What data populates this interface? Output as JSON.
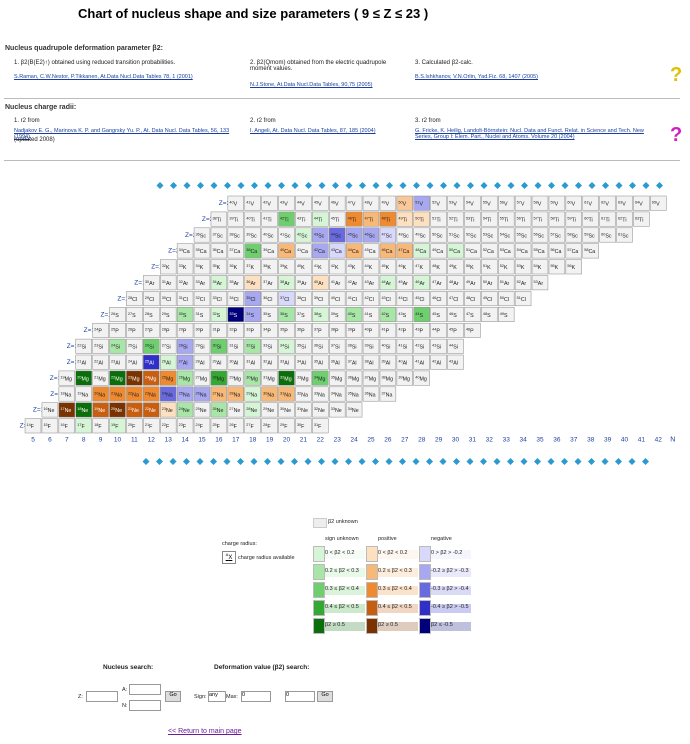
{
  "header": {
    "title": "Chart of nucleus shape and size parameters ( 9 ≤ Z ≤ 23 )"
  },
  "quadrupole": {
    "heading": "Nucleus quadrupole deformation parameter β2:",
    "items": [
      {
        "title": "1. β2(B(E2)↑) obtained using reduced transition probabilities.",
        "ref": "S.Raman, C.W.Nestor, P.Tikkanen, At.Data Nucl.Data Tables 78, 1 (2001)"
      },
      {
        "title": "2. β2(Qmom) obtained from the electric quadrupole moment values.",
        "ref": "N.J.Stone, At.Data Nucl.Data Tables, 90,75 (2005)"
      },
      {
        "title": "3. Calculated β2-calc.",
        "ref": "B.S.Ishkhanov, V.N.Orlin, Yad.Fiz. 68, 1407 (2005)"
      }
    ]
  },
  "radii": {
    "heading": "Nucleus charge radii:",
    "items": [
      {
        "title": "1. r2 from",
        "ref": "Nadjakov E. G., Marinova K. P. and Gangrsky Yu. P., At. Data Nucl. Data Tables, 56, 133 (1994)",
        "extra": "(updated 2008)"
      },
      {
        "title": "2. r2 from",
        "ref": "I. Angeli, At. Data Nucl. Data Tables, 87, 185 (2004)"
      },
      {
        "title": "3. r2 from",
        "ref": "G. Fricke, K. Heilig, Landolt-Börnstein: Nucl. Data and Funct. Relat. in Science and Tech. New Series, Group I: Elem. Part., Nuclei and Atoms. Volume 20 (2004)"
      }
    ]
  },
  "chart": {
    "rows": [
      {
        "label": "Z=23",
        "z": 23,
        "symbol": "V",
        "masses": [
          40,
          41,
          42,
          43,
          44,
          45,
          46,
          47,
          48,
          49,
          50,
          51,
          52,
          53,
          54,
          55,
          56,
          57,
          58,
          59,
          60,
          61,
          62,
          63,
          64,
          65
        ],
        "colors": {
          "50": "#f8c898",
          "51": "#a8a8f0"
        }
      },
      {
        "label": "Z=22",
        "z": 22,
        "symbol": "Ti",
        "masses": [
          38,
          39,
          40,
          41,
          42,
          43,
          44,
          45,
          46,
          47,
          48,
          49,
          50,
          51,
          52,
          53,
          54,
          55,
          56,
          57,
          58,
          59,
          60,
          61,
          62,
          63
        ],
        "colors": {
          "42": "#6fcf6f",
          "44": "#d6f5d6",
          "46": "#f08a30",
          "47": "#f8b878",
          "48": "#f08a30",
          "49": "#fde0c0",
          "50": "#fde0c0"
        }
      },
      {
        "label": "Z=21",
        "z": 21,
        "symbol": "Sc",
        "masses": [
          36,
          37,
          38,
          39,
          40,
          41,
          42,
          43,
          44,
          45,
          46,
          47,
          48,
          49,
          50,
          51,
          52,
          53,
          54,
          55,
          56,
          57,
          58,
          59,
          60,
          61
        ],
        "colors": {
          "42": "#d6f5d6",
          "43": "#a8a8f0",
          "44": "#6a6ae0",
          "45": "#a8a8f0",
          "46": "#a8a8f0",
          "47": "#d8d8fb"
        }
      },
      {
        "label": "Z=20",
        "z": 20,
        "symbol": "Ca",
        "masses": [
          34,
          35,
          36,
          37,
          38,
          39,
          40,
          41,
          42,
          43,
          44,
          45,
          46,
          47,
          48,
          49,
          50,
          51,
          52,
          53,
          54,
          55,
          56,
          57,
          58
        ],
        "colors": {
          "38": "#6fcf6f",
          "40": "#f8b878",
          "42": "#a8a8f0",
          "43": "#d8d8fb",
          "44": "#f8b878",
          "46": "#f8b878",
          "47": "#f8b878",
          "48": "#d6f5d6",
          "50": "#d6f5d6"
        }
      },
      {
        "label": "Z=19",
        "z": 19,
        "symbol": "K",
        "masses": [
          32,
          33,
          34,
          35,
          36,
          37,
          38,
          39,
          40,
          41,
          42,
          43,
          44,
          45,
          46,
          47,
          48,
          49,
          50,
          51,
          52,
          53,
          54,
          55,
          56
        ],
        "colors": {}
      },
      {
        "label": "Z=18",
        "z": 18,
        "symbol": "Ar",
        "masses": [
          30,
          31,
          32,
          33,
          34,
          35,
          36,
          37,
          38,
          39,
          40,
          41,
          42,
          43,
          44,
          45,
          46,
          47,
          48,
          49,
          50,
          51,
          52,
          53
        ],
        "colors": {
          "34": "#d6f5d6",
          "36": "#fde0c0",
          "38": "#d6f5d6",
          "40": "#fde0c0",
          "44": "#d6f5d6",
          "46": "#d6f5d6"
        }
      },
      {
        "label": "Z=17",
        "z": 17,
        "symbol": "Cl",
        "masses": [
          28,
          29,
          30,
          31,
          32,
          33,
          34,
          35,
          36,
          37,
          38,
          39,
          40,
          41,
          42,
          43,
          44,
          45,
          46,
          47,
          48,
          49,
          50,
          51
        ],
        "colors": {
          "35": "#a8a8f0",
          "37": "#d8d8fb"
        }
      },
      {
        "label": "Z=16",
        "z": 16,
        "symbol": "S",
        "masses": [
          26,
          27,
          28,
          29,
          30,
          31,
          32,
          33,
          34,
          35,
          36,
          37,
          38,
          39,
          40,
          41,
          42,
          43,
          44,
          45,
          46,
          47,
          48,
          49
        ],
        "colors": {
          "30": "#a8e6a8",
          "32": "#d6f5d6",
          "33": "#00007a",
          "34": "#a8a8f0",
          "36": "#a8e6a8",
          "38": "#d6f5d6",
          "40": "#a8e6a8",
          "42": "#a8e6a8",
          "44": "#6fcf6f"
        }
      },
      {
        "label": "Z=15",
        "z": 15,
        "symbol": "P",
        "masses": [
          24,
          25,
          26,
          27,
          28,
          29,
          30,
          31,
          32,
          33,
          34,
          35,
          36,
          37,
          38,
          39,
          40,
          41,
          42,
          43,
          44,
          45,
          46
        ],
        "colors": {}
      },
      {
        "label": "Z=14",
        "z": 14,
        "symbol": "Si",
        "masses": [
          22,
          23,
          24,
          25,
          26,
          27,
          28,
          29,
          30,
          31,
          32,
          33,
          34,
          35,
          36,
          37,
          38,
          39,
          40,
          41,
          42,
          43,
          44
        ],
        "colors": {
          "24": "#a8e6a8",
          "26": "#6fcf6f",
          "28": "#a8a8f0",
          "30": "#6fcf6f",
          "32": "#a8e6a8",
          "34": "#d6f5d6"
        }
      },
      {
        "label": "Z=13",
        "z": 13,
        "symbol": "Al",
        "masses": [
          21,
          22,
          23,
          24,
          25,
          26,
          27,
          28,
          29,
          30,
          31,
          32,
          33,
          34,
          35,
          36,
          37,
          38,
          39,
          40,
          41,
          42,
          43
        ],
        "colors": {
          "25": "#3030c8",
          "26": "#d6f5d6",
          "27": "#a8a8f0"
        }
      },
      {
        "label": "Z=12",
        "z": 12,
        "symbol": "Mg",
        "masses": [
          19,
          20,
          21,
          22,
          23,
          24,
          25,
          26,
          27,
          28,
          29,
          30,
          31,
          32,
          33,
          34,
          35,
          36,
          37,
          38,
          39,
          40
        ],
        "colors": {
          "20": "#0a6e0a",
          "22": "#0a6e0a",
          "23": "#7a3300",
          "24": "#c85e10",
          "25": "#f08a30",
          "26": "#a8e6a8",
          "28": "#33a833",
          "30": "#a8e6a8",
          "32": "#0a6e0a",
          "34": "#6fcf6f"
        }
      },
      {
        "label": "Z=11",
        "z": 11,
        "symbol": "Na",
        "masses": [
          18,
          19,
          20,
          21,
          22,
          23,
          24,
          25,
          26,
          27,
          28,
          29,
          30,
          31,
          32,
          33,
          34,
          35,
          36,
          37
        ],
        "colors": {
          "20": "#f08a30",
          "21": "#f08a30",
          "22": "#f08a30",
          "23": "#f08a30",
          "24": "#6a6ae0",
          "25": "#a8a8f0",
          "26": "#a8a8f0",
          "27": "#f8b878",
          "28": "#f8b878",
          "29": "#d6f5d6",
          "30": "#f8b878",
          "31": "#f8b878"
        }
      },
      {
        "label": "Z=10",
        "z": 10,
        "symbol": "Ne",
        "masses": [
          16,
          17,
          18,
          19,
          20,
          21,
          22,
          23,
          24,
          25,
          26,
          27,
          28,
          29,
          30,
          31,
          32,
          33,
          34
        ],
        "colors": {
          "17": "#7a3300",
          "18": "#0a6e0a",
          "19": "#c85e10",
          "20": "#7a3300",
          "21": "#c85e10",
          "22": "#c85e10",
          "23": "#fde0c0",
          "24": "#a8e6a8",
          "26": "#a8e6a8",
          "28": "#d6f5d6"
        }
      },
      {
        "label": "Z=9",
        "z": 9,
        "symbol": "F",
        "masses": [
          14,
          15,
          16,
          17,
          18,
          19,
          20,
          21,
          22,
          23,
          24,
          25,
          26,
          27,
          28,
          29,
          30,
          31
        ],
        "colors": {
          "17": "#d6f5d6",
          "19": "#d6f5d6"
        }
      }
    ],
    "nticks": [
      5,
      6,
      7,
      8,
      9,
      10,
      11,
      12,
      13,
      14,
      15,
      16,
      17,
      18,
      19,
      20,
      21,
      22,
      23,
      24,
      25,
      26,
      27,
      28,
      29,
      30,
      31,
      32,
      33,
      34,
      35,
      36,
      37,
      38,
      39,
      40,
      41,
      42
    ],
    "xlabel": "N"
  },
  "legend": {
    "unknown": {
      "label": "β2 unknown",
      "color": "#eeeeee"
    },
    "radius": {
      "heading": "charge radius:",
      "sample_mass": "A",
      "sample_symbol": "X",
      "label": "charge radius available"
    },
    "columns": [
      {
        "heading": "sign unknown",
        "entries": [
          {
            "label": "0 < β2 < 0.2",
            "color": "#d6f5d6"
          },
          {
            "label": "0.2 ≤ β2 < 0.3",
            "color": "#a8e6a8"
          },
          {
            "label": "0.3 ≤ β2 < 0.4",
            "color": "#6fcf6f"
          },
          {
            "label": "0.4 ≤ β2 < 0.5",
            "color": "#33a833"
          },
          {
            "label": "β2 ≥ 0.5",
            "color": "#0a6e0a"
          }
        ]
      },
      {
        "heading": "positive",
        "entries": [
          {
            "label": "0 < β2 < 0.2",
            "color": "#fde0c0"
          },
          {
            "label": "0.2 ≤ β2 < 0.3",
            "color": "#f8b878"
          },
          {
            "label": "0.3 ≤ β2 < 0.4",
            "color": "#f08a30"
          },
          {
            "label": "0.4 ≤ β2 < 0.5",
            "color": "#c85e10"
          },
          {
            "label": "β2 ≥ 0.5",
            "color": "#7a3300"
          }
        ]
      },
      {
        "heading": "negative",
        "entries": [
          {
            "label": "0 > β2 > -0.2",
            "color": "#d8d8fb"
          },
          {
            "label": "-0.2 ≥ β2 > -0.3",
            "color": "#a8a8f0"
          },
          {
            "label": "-0.3 ≥ β2 > -0.4",
            "color": "#6a6ae0"
          },
          {
            "label": "-0.4 ≥ β2 > -0.5",
            "color": "#3030c8"
          },
          {
            "label": "β2 ≤ -0.5",
            "color": "#00007a"
          }
        ]
      }
    ]
  },
  "search": {
    "nucleus_heading": "Nucleus search:",
    "z_label": "Z:",
    "a_label": "A:",
    "n_label": "N:",
    "go": "Go",
    "deform_heading": "Deformation value (β2) search:",
    "sign_label": "Sign:",
    "sign_value": "any",
    "max_label": "Max:",
    "min_value": "0",
    "max_value": "0",
    "go2": "Go"
  },
  "footer": {
    "link": "<< Return to main page"
  }
}
